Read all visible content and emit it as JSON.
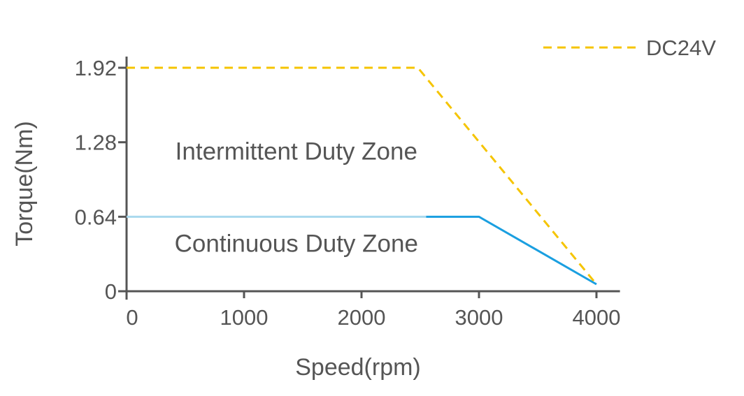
{
  "chart_data": {
    "type": "line",
    "xlabel": "Speed(rpm)",
    "ylabel": "Torque(Nm)",
    "xlim": [
      0,
      4200
    ],
    "ylim": [
      0,
      1.92
    ],
    "x_ticks": [
      0,
      1000,
      2000,
      3000,
      4000
    ],
    "x_tick_labels": [
      "0",
      "1000",
      "2000",
      "3000",
      "4000"
    ],
    "y_ticks": [
      0,
      0.64,
      1.28,
      1.92
    ],
    "y_tick_labels": [
      "0",
      "0.64",
      "1.28",
      "1.92"
    ],
    "grid": false,
    "legend_position": "top-right",
    "series": [
      {
        "name": "DC24V",
        "style": "dashed",
        "color": "#f5c400",
        "x": [
          0,
          2480,
          4000
        ],
        "y": [
          1.92,
          1.92,
          0.06
        ]
      },
      {
        "style": "solid",
        "color": "#1a9fe0",
        "x": [
          0,
          2550,
          3000,
          4000
        ],
        "y": [
          0.64,
          0.64,
          0.64,
          0.06
        ]
      }
    ],
    "annotations": [
      {
        "text": "Intermittent Duty Zone",
        "x": 1600,
        "y": 1.13
      },
      {
        "text": "Continuous Duty Zone",
        "x": 1600,
        "y": 0.34
      }
    ]
  }
}
